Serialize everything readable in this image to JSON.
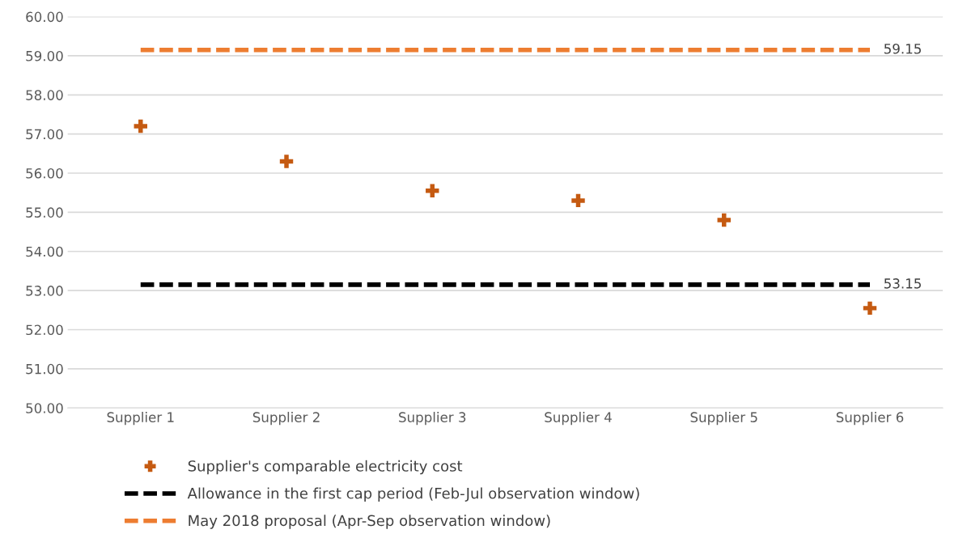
{
  "chart_data": {
    "type": "scatter",
    "categories": [
      "Supplier 1",
      "Supplier 2",
      "Supplier 3",
      "Supplier 4",
      "Supplier 5",
      "Supplier 6"
    ],
    "series": [
      {
        "name": "Supplier's comparable electricity cost",
        "color": "#c55a11",
        "marker": "cross",
        "values": [
          57.2,
          56.3,
          55.55,
          55.3,
          54.8,
          52.55
        ]
      },
      {
        "name": "Allowance in the first cap period (Feb-Jul observation window)",
        "type": "line",
        "color": "#000000",
        "line_style": "dashed",
        "marker": "none",
        "values": [
          53.15,
          53.15,
          53.15,
          53.15,
          53.15,
          53.15
        ],
        "value_labels": [
          null,
          null,
          null,
          null,
          null,
          "53.15"
        ]
      },
      {
        "name": "May 2018 proposal (Apr-Sep observation window)",
        "type": "line",
        "color": "#ed7d31",
        "line_style": "dashed",
        "marker": "none",
        "values": [
          59.15,
          59.15,
          59.15,
          59.15,
          59.15,
          59.15
        ],
        "value_labels": [
          null,
          null,
          null,
          null,
          null,
          "59.15"
        ]
      }
    ],
    "ylim": [
      50,
      60
    ],
    "yticks": [
      {
        "value": 50,
        "label": "50.00"
      },
      {
        "value": 51,
        "label": "51.00"
      },
      {
        "value": 52,
        "label": "52.00"
      },
      {
        "value": 53,
        "label": "53.00"
      },
      {
        "value": 54,
        "label": "54.00"
      },
      {
        "value": 55,
        "label": "55.00"
      },
      {
        "value": 56,
        "label": "56.00"
      },
      {
        "value": 57,
        "label": "57.00"
      },
      {
        "value": 58,
        "label": "58.00"
      },
      {
        "value": 59,
        "label": "59.00"
      },
      {
        "value": 60,
        "label": "60.00"
      }
    ],
    "grid": "y",
    "legend": "bottom"
  }
}
